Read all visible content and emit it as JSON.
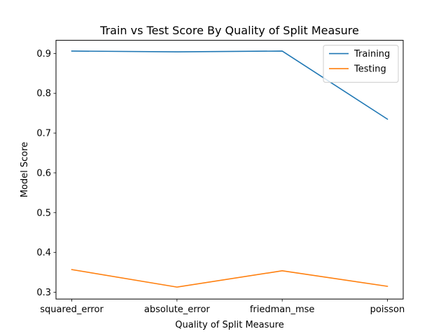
{
  "chart_data": {
    "type": "line",
    "title": "Train vs Test Score By Quality of Split Measure",
    "xlabel": "Quality of Split Measure",
    "ylabel": "Model Score",
    "categories": [
      "squared_error",
      "absolute_error",
      "friedman_mse",
      "poisson"
    ],
    "ylim": [
      0.283,
      0.933
    ],
    "yticks": [
      0.3,
      0.4,
      0.5,
      0.6,
      0.7,
      0.8,
      0.9
    ],
    "ytick_labels": [
      "0.3",
      "0.4",
      "0.5",
      "0.6",
      "0.7",
      "0.8",
      "0.9"
    ],
    "series": [
      {
        "name": "Training",
        "color": "#1f77b4",
        "values": [
          0.906,
          0.904,
          0.906,
          0.735
        ]
      },
      {
        "name": "Testing",
        "color": "#ff7f0e",
        "values": [
          0.357,
          0.313,
          0.354,
          0.315
        ]
      }
    ],
    "grid": false,
    "legend": "top-right"
  }
}
